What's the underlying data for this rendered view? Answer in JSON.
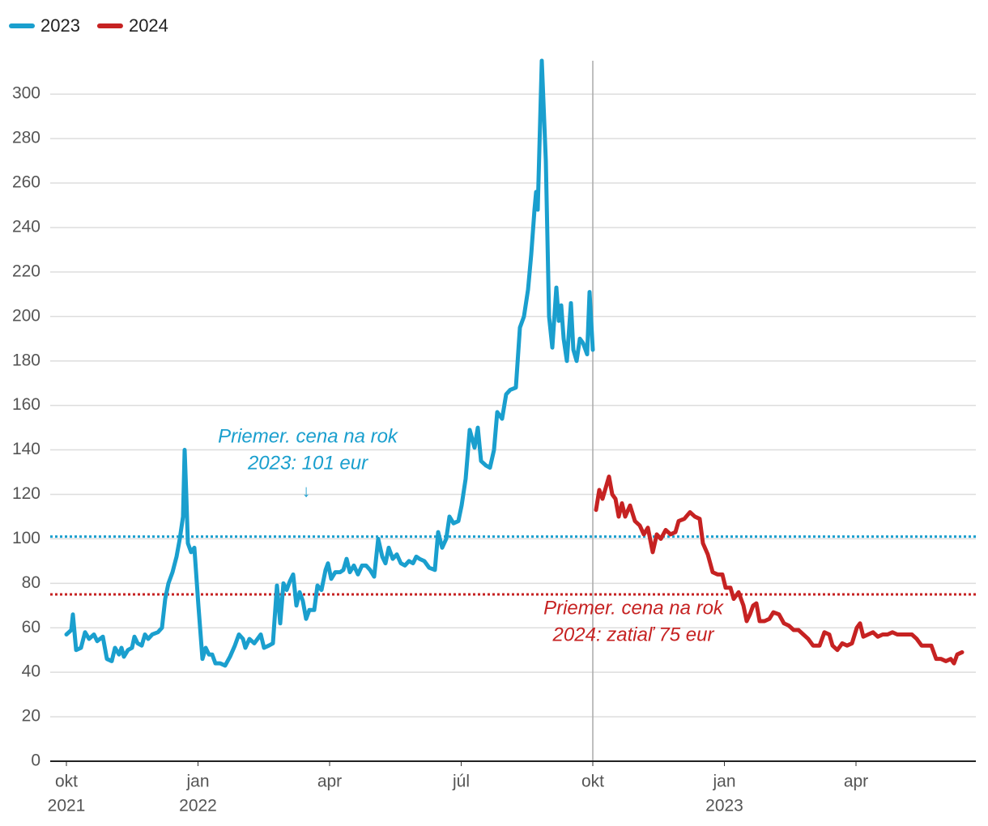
{
  "chart_data": {
    "type": "line",
    "series": [
      {
        "name": "2023",
        "color": "#1a9fce",
        "x": [
          0,
          0.48,
          0.64,
          0.96,
          1.44,
          1.84,
          2.24,
          2.72,
          3.04,
          3.6,
          4,
          4.48,
          4.8,
          5.2,
          5.44,
          5.68,
          6.08,
          6.48,
          6.72,
          7.04,
          7.44,
          7.76,
          8.08,
          8.48,
          9.04,
          9.44,
          9.76,
          10.08,
          10.48,
          10.88,
          11.2,
          11.52,
          11.68,
          11.84,
          12,
          12.32,
          12.64,
          13.04,
          13.44,
          13.76,
          14.08,
          14.4,
          14.72,
          15.2,
          15.68,
          16.16,
          16.64,
          17.04,
          17.44,
          17.68,
          18.08,
          18.56,
          18.88,
          19.2,
          19.52,
          20,
          20.4,
          20.8,
          21.12,
          21.44,
          21.76,
          22.08,
          22.4,
          22.72,
          23.04,
          23.36,
          23.68,
          24,
          24.48,
          24.8,
          25.2,
          25.6,
          25.84,
          26.16,
          26.56,
          27.04,
          27.36,
          27.68,
          28,
          28.4,
          28.8,
          29.2,
          29.6,
          30,
          30.4,
          30.8,
          31.2,
          31.52,
          31.84,
          32.24,
          32.64,
          33.04,
          33.44,
          33.84,
          34.24,
          34.56,
          34.88,
          35.36,
          35.84,
          36.4,
          36.72,
          37.12,
          37.52,
          37.84,
          38.24,
          38.72,
          39.04,
          39.44,
          39.84,
          40.32,
          40.64,
          40.96,
          41.44,
          41.84,
          42.24,
          42.56,
          43.04,
          43.44,
          43.84,
          44.4,
          44.8,
          45.2,
          45.6,
          45.92,
          46.24,
          46.4,
          46.56,
          46.96,
          47.36,
          47.68,
          48,
          48.4,
          48.64,
          48.88,
          49.12,
          49.44,
          49.84,
          50.08,
          50.4,
          50.72,
          51.04,
          51.44,
          51.68,
          52
        ],
        "values": [
          57,
          59,
          66,
          50,
          51,
          58,
          55,
          57,
          54,
          56,
          46,
          45,
          51,
          48,
          51,
          47,
          50,
          51,
          56,
          53,
          52,
          57,
          55,
          57,
          58,
          60,
          73,
          80,
          85,
          92,
          100,
          110,
          140,
          120,
          98,
          94,
          96,
          70,
          46,
          51,
          48,
          48,
          44,
          44,
          43,
          47,
          52,
          57,
          55,
          51,
          55,
          53,
          55,
          57,
          51,
          52,
          53,
          79,
          62,
          80,
          77,
          81,
          84,
          70,
          76,
          72,
          64,
          68,
          68,
          79,
          77,
          86,
          89,
          82,
          85,
          85,
          86,
          91,
          85,
          88,
          84,
          88,
          88,
          86,
          83,
          100,
          92,
          89,
          96,
          91,
          93,
          89,
          88,
          90,
          89,
          92,
          91,
          90,
          87,
          86,
          103,
          96,
          100,
          110,
          107,
          108,
          115,
          127,
          149,
          141,
          150,
          135,
          133,
          132,
          140,
          157,
          154,
          165,
          167,
          168,
          195,
          200,
          212,
          228,
          248,
          256,
          248,
          315,
          270,
          200,
          186,
          213,
          198,
          205,
          190,
          180,
          206,
          185,
          180,
          190,
          188,
          183,
          211,
          185
        ]
      },
      {
        "name": "2024",
        "color": "#c62222",
        "x": [
          52.32,
          52.64,
          52.96,
          53.28,
          53.6,
          53.92,
          54.24,
          54.56,
          54.88,
          55.2,
          55.68,
          56.16,
          56.64,
          57.04,
          57.44,
          57.92,
          58.32,
          58.72,
          59.2,
          59.68,
          60.16,
          60.48,
          61.04,
          61.6,
          62.08,
          62.56,
          62.88,
          63.36,
          63.84,
          64.32,
          64.8,
          65.12,
          65.6,
          65.92,
          66.4,
          66.88,
          67.2,
          67.52,
          67.84,
          68.16,
          68.48,
          68.96,
          69.44,
          69.84,
          70.4,
          70.88,
          71.36,
          71.84,
          72.32,
          72.8,
          73.28,
          73.76,
          74.4,
          74.88,
          75.36,
          75.68,
          76.16,
          76.64,
          77.12,
          77.6,
          78.08,
          78.4,
          78.72,
          79.2,
          79.68,
          80.16,
          80.64,
          81.12,
          81.6,
          82.08,
          82.56,
          83.04,
          83.52,
          84,
          84.48,
          84.96,
          85.44,
          85.92,
          86.4,
          86.88,
          87.36,
          87.68,
          88,
          88.48
        ],
        "values": [
          113,
          122,
          118,
          123,
          128,
          120,
          118,
          110,
          116,
          110,
          115,
          108,
          106,
          102,
          105,
          94,
          102,
          100,
          104,
          102,
          103,
          108,
          109,
          112,
          110,
          109,
          98,
          93,
          85,
          84,
          84,
          78,
          78,
          73,
          76,
          70,
          63,
          66,
          70,
          71,
          63,
          63,
          64,
          67,
          66,
          62,
          61,
          59,
          59,
          57,
          55,
          52,
          52,
          58,
          57,
          52,
          50,
          53,
          52,
          53,
          60,
          62,
          56,
          57,
          58,
          56,
          57,
          57,
          58,
          57,
          57,
          57,
          57,
          55,
          52,
          52,
          52,
          46,
          46,
          45,
          46,
          44,
          48,
          49
        ]
      }
    ],
    "xlim": [
      -1.6,
      89.84
    ],
    "xticks": [
      {
        "value": 0,
        "label": "okt"
      },
      {
        "value": 13,
        "label": "jan"
      },
      {
        "value": 26,
        "label": "apr"
      },
      {
        "value": 39,
        "label": "júl"
      },
      {
        "value": 52,
        "label": "okt"
      },
      {
        "value": 65,
        "label": "jan"
      },
      {
        "value": 78,
        "label": "apr"
      }
    ],
    "xtick_years": [
      {
        "value": 0,
        "label": "2021"
      },
      {
        "value": 13,
        "label": "2022"
      },
      {
        "value": 65,
        "label": "2023"
      }
    ],
    "ylim": [
      0,
      315
    ],
    "yticks": [
      0,
      20,
      40,
      60,
      80,
      100,
      120,
      140,
      160,
      180,
      200,
      220,
      240,
      260,
      280,
      300
    ],
    "grid": true,
    "vline": 52,
    "reference_lines": [
      {
        "value": 101,
        "color": "#1a9fce",
        "label": [
          "Priemer. cena na rok",
          "2023: 101 eur"
        ],
        "arrow": "↓"
      },
      {
        "value": 75,
        "color": "#c62222",
        "label": [
          "Priemer. cena na rok",
          "2024: zatiaľ 75 eur"
        ]
      }
    ],
    "legend": "top-left"
  }
}
